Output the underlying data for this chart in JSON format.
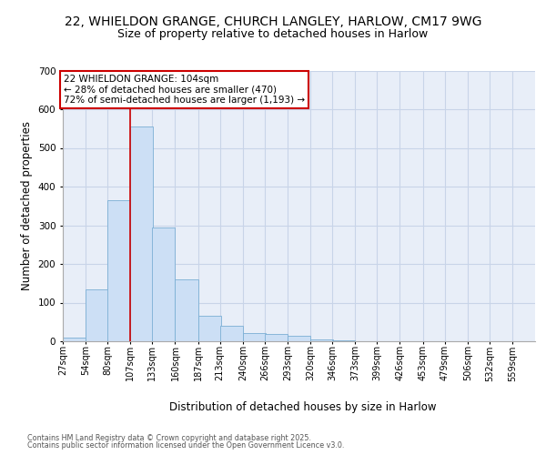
{
  "title1": "22, WHIELDON GRANGE, CHURCH LANGLEY, HARLOW, CM17 9WG",
  "title2": "Size of property relative to detached houses in Harlow",
  "xlabel": "Distribution of detached houses by size in Harlow",
  "ylabel": "Number of detached properties",
  "bar_color": "#ccdff5",
  "bar_edge_color": "#7bafd4",
  "background_color": "#e8eef8",
  "grid_color": "#c8d4e8",
  "annotation_text": "22 WHIELDON GRANGE: 104sqm\n← 28% of detached houses are smaller (470)\n72% of semi-detached houses are larger (1,193) →",
  "annotation_box_color": "#ffffff",
  "annotation_box_edge": "#cc0000",
  "vline_color": "#cc0000",
  "vline_x": 107,
  "categories": [
    "27sqm",
    "54sqm",
    "80sqm",
    "107sqm",
    "133sqm",
    "160sqm",
    "187sqm",
    "213sqm",
    "240sqm",
    "266sqm",
    "293sqm",
    "320sqm",
    "346sqm",
    "373sqm",
    "399sqm",
    "426sqm",
    "453sqm",
    "479sqm",
    "506sqm",
    "532sqm",
    "559sqm"
  ],
  "bin_starts": [
    27,
    54,
    80,
    107,
    133,
    160,
    187,
    213,
    240,
    266,
    293,
    320,
    346,
    373,
    399,
    426,
    453,
    479,
    506,
    532,
    559
  ],
  "bin_width": 27,
  "values": [
    10,
    135,
    365,
    555,
    295,
    160,
    65,
    40,
    22,
    20,
    13,
    5,
    3,
    0,
    0,
    0,
    0,
    0,
    0,
    0,
    0
  ],
  "ylim": [
    0,
    700
  ],
  "yticks": [
    0,
    100,
    200,
    300,
    400,
    500,
    600,
    700
  ],
  "footer_line1": "Contains HM Land Registry data © Crown copyright and database right 2025.",
  "footer_line2": "Contains public sector information licensed under the Open Government Licence v3.0."
}
